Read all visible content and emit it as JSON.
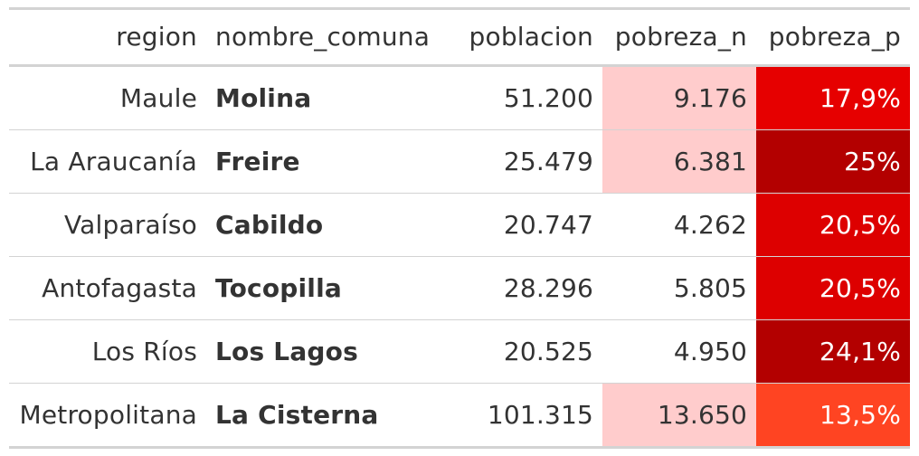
{
  "chart_data": {
    "type": "table",
    "columns": [
      "region",
      "nombre_comuna",
      "poblacion",
      "pobreza_n",
      "pobreza_p"
    ],
    "rows": [
      {
        "region": "Maule",
        "nombre_comuna": "Molina",
        "poblacion": "51.200",
        "pobreza_n": "9.176",
        "pobreza_p": "17,9%",
        "pobreza_n_color": "#ffcccc",
        "pobreza_p_color": "#e60000"
      },
      {
        "region": "La Araucanía",
        "nombre_comuna": "Freire",
        "poblacion": "25.479",
        "pobreza_n": "6.381",
        "pobreza_p": "25%",
        "pobreza_n_color": "#ffcccc",
        "pobreza_p_color": "#b30000"
      },
      {
        "region": "Valparaíso",
        "nombre_comuna": "Cabildo",
        "poblacion": "20.747",
        "pobreza_n": "4.262",
        "pobreza_p": "20,5%",
        "pobreza_n_color": "#ffffff",
        "pobreza_p_color": "#dd0000"
      },
      {
        "region": "Antofagasta",
        "nombre_comuna": "Tocopilla",
        "poblacion": "28.296",
        "pobreza_n": "5.805",
        "pobreza_p": "20,5%",
        "pobreza_n_color": "#ffffff",
        "pobreza_p_color": "#dd0000"
      },
      {
        "region": "Los Ríos",
        "nombre_comuna": "Los Lagos",
        "poblacion": "20.525",
        "pobreza_n": "4.950",
        "pobreza_p": "24,1%",
        "pobreza_n_color": "#ffffff",
        "pobreza_p_color": "#b30000"
      },
      {
        "region": "Metropolitana",
        "nombre_comuna": "La Cisterna",
        "poblacion": "101.315",
        "pobreza_n": "13.650",
        "pobreza_p": "13,5%",
        "pobreza_n_color": "#ffcccc",
        "pobreza_p_color": "#ff4422"
      }
    ]
  }
}
